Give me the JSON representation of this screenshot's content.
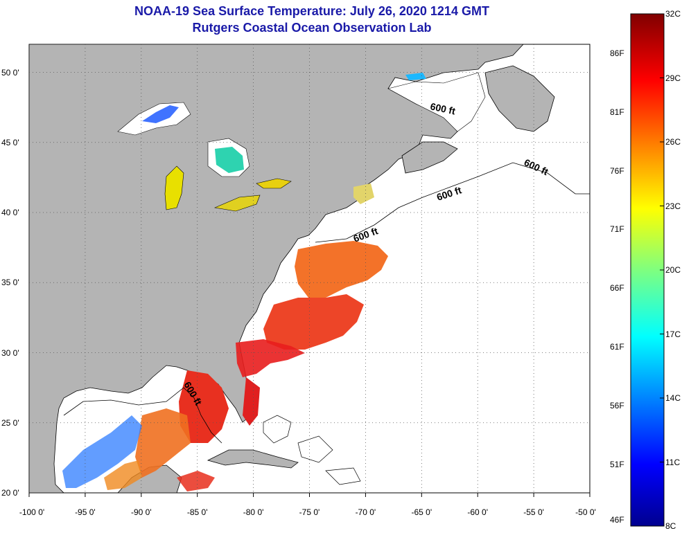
{
  "title": {
    "line1": "NOAA-19 Sea Surface Temperature:  July 26, 2020 1214 GMT",
    "line2": "Rutgers Coastal Ocean Observation Lab"
  },
  "map": {
    "lon_range": [
      -100,
      -50
    ],
    "lat_range": [
      20,
      52
    ],
    "lat_labels": [
      "50 0'",
      "45 0'",
      "40 0'",
      "35 0'",
      "30 0'",
      "25 0'",
      "20 0'"
    ],
    "lat_values": [
      50,
      45,
      40,
      35,
      30,
      25,
      20
    ],
    "lon_labels": [
      "-100 0'",
      "-95 0'",
      "-90 0'",
      "-85 0'",
      "-80 0'",
      "-75 0'",
      "-70 0'",
      "-65 0'",
      "-60 0'",
      "-55 0'",
      "-50 0'"
    ],
    "lon_values": [
      -100,
      -95,
      -90,
      -85,
      -80,
      -75,
      -70,
      -65,
      -60,
      -55,
      -50
    ],
    "grid": true,
    "isobath_label": "600 ft",
    "colors": {
      "land": "#b4b4b4",
      "ocean": "#ffffff",
      "title": "#1a1aa8",
      "grid": "#555555"
    }
  },
  "colorbar": {
    "celsius_labels": [
      "32C",
      "29C",
      "26C",
      "23C",
      "20C",
      "17C",
      "14C",
      "11C",
      "8C"
    ],
    "fahrenheit_labels": [
      "86F",
      "81F",
      "76F",
      "71F",
      "66F",
      "61F",
      "56F",
      "51F",
      "46F"
    ],
    "range_c": [
      8,
      32
    ],
    "colormap": "jet"
  }
}
